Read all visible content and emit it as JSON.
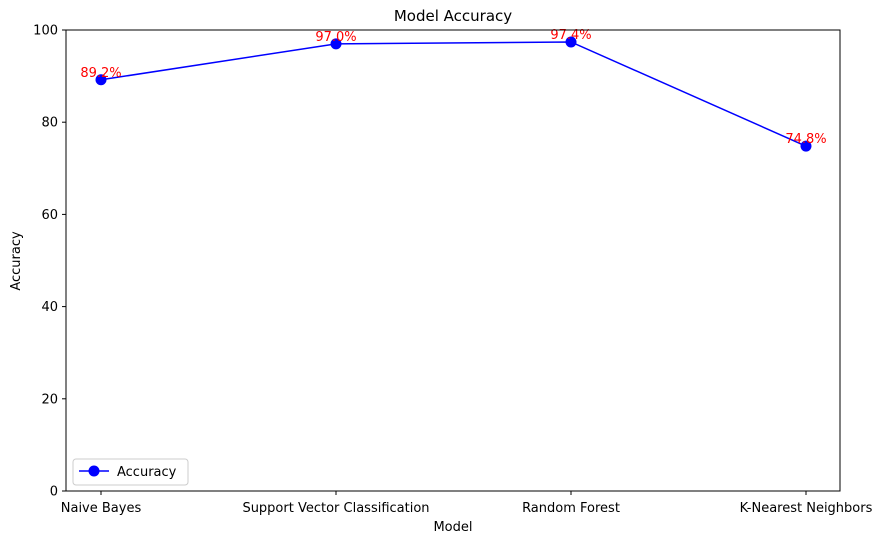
{
  "chart_data": {
    "type": "line",
    "title": "Model Accuracy",
    "xlabel": "Model",
    "ylabel": "Accuracy",
    "categories": [
      "Naive Bayes",
      "Support Vector Classification",
      "Random Forest",
      "K-Nearest Neighbors"
    ],
    "series": [
      {
        "name": "Accuracy",
        "values": [
          89.2,
          97.0,
          97.4,
          74.8
        ],
        "color": "#0000ff",
        "marker": "circle"
      }
    ],
    "data_labels": [
      "89.2%",
      "97.0%",
      "97.4%",
      "74.8%"
    ],
    "data_label_color": "#ff0000",
    "ylim": [
      0,
      100
    ],
    "yticks": [
      0,
      20,
      40,
      60,
      80,
      100
    ],
    "grid": false,
    "legend": {
      "position": "lower-left",
      "entries": [
        "Accuracy"
      ]
    }
  }
}
